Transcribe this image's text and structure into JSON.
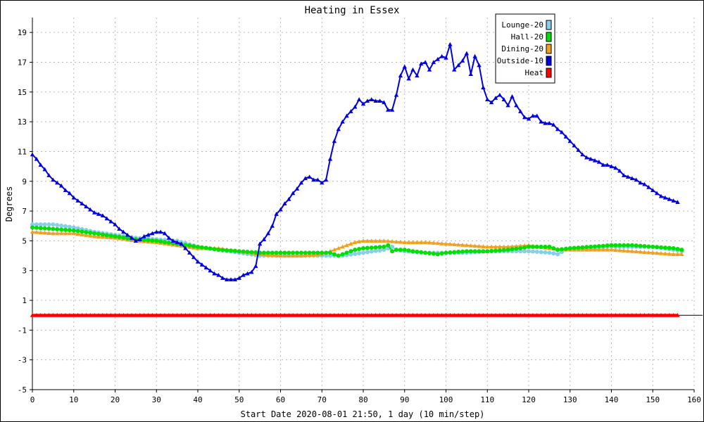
{
  "chart_data": {
    "type": "line",
    "title": "Heating in Essex",
    "xlabel": "Start Date 2020-08-01 21:50, 1 day (10 min/step)",
    "ylabel": "Degrees",
    "xlim": [
      0,
      160
    ],
    "ylim": [
      -5,
      20
    ],
    "x_ticks": [
      0,
      10,
      20,
      30,
      40,
      50,
      60,
      70,
      80,
      90,
      100,
      110,
      120,
      130,
      140,
      150,
      160
    ],
    "y_ticks": [
      -5,
      -3,
      -1,
      1,
      3,
      5,
      7,
      9,
      11,
      13,
      15,
      17,
      19
    ],
    "grid": true,
    "legend_position": "top-right",
    "series": [
      {
        "name": "Lounge-20",
        "color": "#87ceeb",
        "marker": "circle",
        "points": [
          [
            0,
            6.1
          ],
          [
            5,
            6.1
          ],
          [
            10,
            5.9
          ],
          [
            15,
            5.6
          ],
          [
            20,
            5.4
          ],
          [
            25,
            5.2
          ],
          [
            30,
            5.1
          ],
          [
            35,
            5.0
          ],
          [
            40,
            4.6
          ],
          [
            45,
            4.4
          ],
          [
            50,
            4.2
          ],
          [
            55,
            4.0
          ],
          [
            60,
            4.0
          ],
          [
            65,
            4.0
          ],
          [
            70,
            4.0
          ],
          [
            75,
            4.0
          ],
          [
            80,
            4.2
          ],
          [
            85,
            4.4
          ],
          [
            87,
            4.6
          ],
          [
            88,
            4.4
          ],
          [
            90,
            4.3
          ],
          [
            95,
            4.2
          ],
          [
            100,
            4.2
          ],
          [
            105,
            4.2
          ],
          [
            110,
            4.3
          ],
          [
            115,
            4.3
          ],
          [
            120,
            4.3
          ],
          [
            125,
            4.2
          ],
          [
            127,
            4.1
          ],
          [
            129,
            4.4
          ],
          [
            132,
            4.5
          ],
          [
            135,
            4.5
          ],
          [
            140,
            4.6
          ],
          [
            145,
            4.6
          ],
          [
            150,
            4.6
          ],
          [
            155,
            4.4
          ],
          [
            157,
            4.3
          ]
        ]
      },
      {
        "name": "Hall-20",
        "color": "#00e000",
        "marker": "circle",
        "points": [
          [
            0,
            5.9
          ],
          [
            5,
            5.8
          ],
          [
            10,
            5.7
          ],
          [
            15,
            5.5
          ],
          [
            20,
            5.3
          ],
          [
            25,
            5.1
          ],
          [
            30,
            5.0
          ],
          [
            35,
            4.8
          ],
          [
            40,
            4.6
          ],
          [
            45,
            4.4
          ],
          [
            50,
            4.3
          ],
          [
            55,
            4.2
          ],
          [
            60,
            4.2
          ],
          [
            65,
            4.2
          ],
          [
            70,
            4.2
          ],
          [
            72,
            4.2
          ],
          [
            74,
            4.0
          ],
          [
            76,
            4.2
          ],
          [
            78,
            4.4
          ],
          [
            80,
            4.5
          ],
          [
            85,
            4.6
          ],
          [
            86,
            4.7
          ],
          [
            87,
            4.3
          ],
          [
            88,
            4.4
          ],
          [
            90,
            4.4
          ],
          [
            92,
            4.3
          ],
          [
            95,
            4.2
          ],
          [
            98,
            4.1
          ],
          [
            100,
            4.2
          ],
          [
            105,
            4.3
          ],
          [
            110,
            4.3
          ],
          [
            115,
            4.4
          ],
          [
            118,
            4.5
          ],
          [
            120,
            4.6
          ],
          [
            125,
            4.6
          ],
          [
            127,
            4.4
          ],
          [
            130,
            4.5
          ],
          [
            135,
            4.6
          ],
          [
            140,
            4.7
          ],
          [
            145,
            4.7
          ],
          [
            150,
            4.6
          ],
          [
            155,
            4.5
          ],
          [
            157,
            4.4
          ]
        ]
      },
      {
        "name": "Dining-20",
        "color": "#f0a020",
        "marker": "triangle",
        "points": [
          [
            0,
            5.6
          ],
          [
            5,
            5.5
          ],
          [
            10,
            5.5
          ],
          [
            15,
            5.3
          ],
          [
            20,
            5.2
          ],
          [
            25,
            5.0
          ],
          [
            30,
            4.9
          ],
          [
            35,
            4.7
          ],
          [
            40,
            4.5
          ],
          [
            45,
            4.5
          ],
          [
            50,
            4.3
          ],
          [
            55,
            4.1
          ],
          [
            60,
            4.0
          ],
          [
            65,
            4.0
          ],
          [
            70,
            4.1
          ],
          [
            72,
            4.3
          ],
          [
            75,
            4.6
          ],
          [
            78,
            4.9
          ],
          [
            80,
            5.0
          ],
          [
            85,
            5.0
          ],
          [
            90,
            4.9
          ],
          [
            95,
            4.9
          ],
          [
            100,
            4.8
          ],
          [
            105,
            4.7
          ],
          [
            110,
            4.6
          ],
          [
            115,
            4.6
          ],
          [
            120,
            4.7
          ],
          [
            125,
            4.5
          ],
          [
            130,
            4.4
          ],
          [
            135,
            4.4
          ],
          [
            140,
            4.4
          ],
          [
            145,
            4.3
          ],
          [
            150,
            4.2
          ],
          [
            155,
            4.1
          ],
          [
            157,
            4.1
          ]
        ]
      },
      {
        "name": "Outside-10",
        "color": "#0000e0",
        "marker": "triangle",
        "points": [
          [
            0,
            10.8
          ],
          [
            1,
            10.5
          ],
          [
            2,
            10.1
          ],
          [
            3,
            9.8
          ],
          [
            4,
            9.4
          ],
          [
            5,
            9.1
          ],
          [
            6,
            8.9
          ],
          [
            7,
            8.7
          ],
          [
            8,
            8.4
          ],
          [
            9,
            8.2
          ],
          [
            10,
            7.9
          ],
          [
            11,
            7.7
          ],
          [
            12,
            7.5
          ],
          [
            13,
            7.3
          ],
          [
            14,
            7.1
          ],
          [
            15,
            6.9
          ],
          [
            16,
            6.8
          ],
          [
            17,
            6.7
          ],
          [
            18,
            6.5
          ],
          [
            19,
            6.3
          ],
          [
            20,
            6.1
          ],
          [
            21,
            5.8
          ],
          [
            22,
            5.6
          ],
          [
            23,
            5.4
          ],
          [
            24,
            5.2
          ],
          [
            25,
            5.0
          ],
          [
            26,
            5.1
          ],
          [
            27,
            5.3
          ],
          [
            28,
            5.4
          ],
          [
            29,
            5.5
          ],
          [
            30,
            5.6
          ],
          [
            31,
            5.6
          ],
          [
            32,
            5.5
          ],
          [
            33,
            5.2
          ],
          [
            34,
            5.0
          ],
          [
            35,
            4.9
          ],
          [
            36,
            4.8
          ],
          [
            37,
            4.5
          ],
          [
            38,
            4.2
          ],
          [
            39,
            3.9
          ],
          [
            40,
            3.6
          ],
          [
            41,
            3.4
          ],
          [
            42,
            3.2
          ],
          [
            43,
            3.0
          ],
          [
            44,
            2.8
          ],
          [
            45,
            2.7
          ],
          [
            46,
            2.5
          ],
          [
            47,
            2.4
          ],
          [
            48,
            2.4
          ],
          [
            49,
            2.4
          ],
          [
            50,
            2.5
          ],
          [
            51,
            2.7
          ],
          [
            52,
            2.8
          ],
          [
            53,
            2.9
          ],
          [
            54,
            3.3
          ],
          [
            55,
            4.8
          ],
          [
            56,
            5.1
          ],
          [
            57,
            5.5
          ],
          [
            58,
            6.0
          ],
          [
            59,
            6.8
          ],
          [
            60,
            7.1
          ],
          [
            61,
            7.5
          ],
          [
            62,
            7.8
          ],
          [
            63,
            8.2
          ],
          [
            64,
            8.5
          ],
          [
            65,
            8.9
          ],
          [
            66,
            9.2
          ],
          [
            67,
            9.3
          ],
          [
            68,
            9.1
          ],
          [
            69,
            9.1
          ],
          [
            70,
            8.9
          ],
          [
            71,
            9.1
          ],
          [
            72,
            10.5
          ],
          [
            73,
            11.7
          ],
          [
            74,
            12.5
          ],
          [
            75,
            13.0
          ],
          [
            76,
            13.4
          ],
          [
            77,
            13.7
          ],
          [
            78,
            14.0
          ],
          [
            79,
            14.5
          ],
          [
            80,
            14.2
          ],
          [
            81,
            14.4
          ],
          [
            82,
            14.5
          ],
          [
            83,
            14.4
          ],
          [
            84,
            14.4
          ],
          [
            85,
            14.3
          ],
          [
            86,
            13.8
          ],
          [
            87,
            13.8
          ],
          [
            88,
            14.8
          ],
          [
            89,
            16.1
          ],
          [
            90,
            16.7
          ],
          [
            91,
            15.9
          ],
          [
            92,
            16.5
          ],
          [
            93,
            16.1
          ],
          [
            94,
            16.9
          ],
          [
            95,
            17.0
          ],
          [
            96,
            16.5
          ],
          [
            97,
            17.0
          ],
          [
            98,
            17.2
          ],
          [
            99,
            17.4
          ],
          [
            100,
            17.3
          ],
          [
            101,
            18.2
          ],
          [
            102,
            16.5
          ],
          [
            103,
            16.8
          ],
          [
            104,
            17.1
          ],
          [
            105,
            17.6
          ],
          [
            106,
            16.2
          ],
          [
            107,
            17.4
          ],
          [
            108,
            16.8
          ],
          [
            109,
            15.3
          ],
          [
            110,
            14.5
          ],
          [
            111,
            14.3
          ],
          [
            112,
            14.6
          ],
          [
            113,
            14.8
          ],
          [
            114,
            14.5
          ],
          [
            115,
            14.1
          ],
          [
            116,
            14.7
          ],
          [
            117,
            14.1
          ],
          [
            118,
            13.7
          ],
          [
            119,
            13.3
          ],
          [
            120,
            13.2
          ],
          [
            121,
            13.4
          ],
          [
            122,
            13.4
          ],
          [
            123,
            13.0
          ],
          [
            124,
            12.9
          ],
          [
            125,
            12.9
          ],
          [
            126,
            12.8
          ],
          [
            127,
            12.5
          ],
          [
            128,
            12.3
          ],
          [
            129,
            12.0
          ],
          [
            130,
            11.7
          ],
          [
            131,
            11.4
          ],
          [
            132,
            11.1
          ],
          [
            133,
            10.8
          ],
          [
            134,
            10.6
          ],
          [
            135,
            10.5
          ],
          [
            136,
            10.4
          ],
          [
            137,
            10.3
          ],
          [
            138,
            10.1
          ],
          [
            139,
            10.1
          ],
          [
            140,
            10.0
          ],
          [
            141,
            9.9
          ],
          [
            142,
            9.7
          ],
          [
            143,
            9.4
          ],
          [
            144,
            9.3
          ],
          [
            145,
            9.2
          ],
          [
            146,
            9.1
          ],
          [
            147,
            8.9
          ],
          [
            148,
            8.8
          ],
          [
            149,
            8.6
          ],
          [
            150,
            8.4
          ],
          [
            151,
            8.2
          ],
          [
            152,
            8.0
          ],
          [
            153,
            7.9
          ],
          [
            154,
            7.8
          ],
          [
            155,
            7.7
          ],
          [
            156,
            7.6
          ]
        ]
      },
      {
        "name": "Heat",
        "color": "#ff0000",
        "marker": "triangle",
        "points": [
          [
            0,
            0.0
          ],
          [
            156,
            0.0
          ]
        ],
        "uniform_step": 1
      }
    ]
  }
}
